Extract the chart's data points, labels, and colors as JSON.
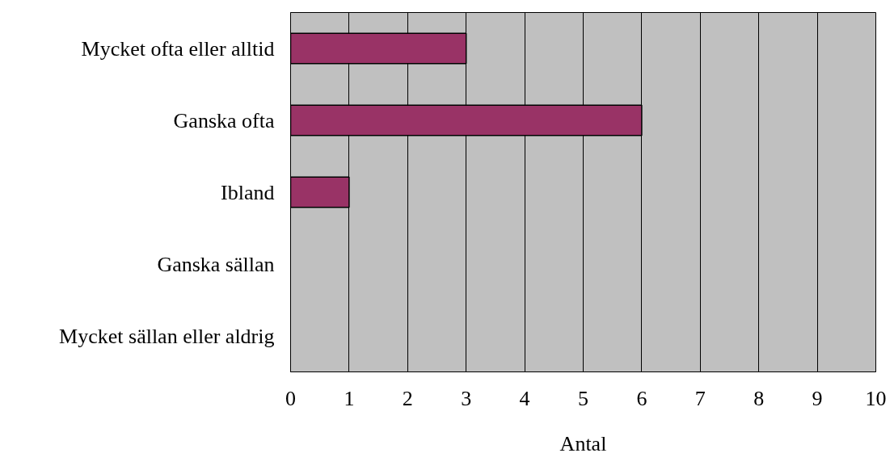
{
  "chart_data": {
    "type": "bar",
    "orientation": "horizontal",
    "xlabel": "Antal",
    "categories": [
      "Mycket ofta eller alltid",
      "Ganska ofta",
      "Ibland",
      "Ganska sällan",
      "Mycket sällan eller aldrig"
    ],
    "values": [
      3,
      6,
      1,
      0,
      0
    ],
    "color": "#993366",
    "xlim": [
      0,
      10
    ],
    "xticks": [
      0,
      1,
      2,
      3,
      4,
      5,
      6,
      7,
      8,
      9,
      10
    ],
    "grid": "x"
  }
}
